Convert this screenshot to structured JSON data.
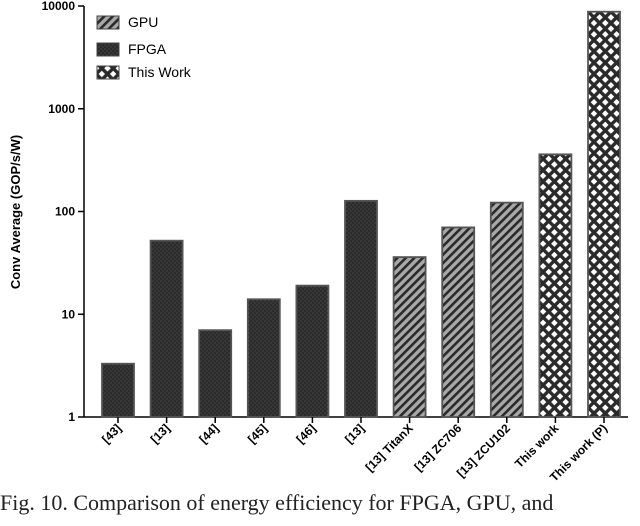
{
  "chart_data": {
    "type": "bar",
    "ylabel": "Conv Average (GOP/s/W)",
    "yscale": "log",
    "ylim": [
      1,
      10000
    ],
    "yticks": [
      "1",
      "10",
      "100",
      "1000",
      "10000"
    ],
    "categories": [
      "[43]",
      "[13]",
      "[44]",
      "[45]",
      "[46]",
      "[13]",
      "[13] TitanX",
      "[13] ZC706",
      "[13] ZCU102",
      "This work",
      "This work (P)"
    ],
    "values": [
      3.3,
      52,
      7,
      14,
      19,
      127,
      36,
      70,
      122,
      360,
      8800
    ],
    "groups": [
      "FPGA",
      "FPGA",
      "FPGA",
      "FPGA",
      "FPGA",
      "FPGA",
      "GPU",
      "GPU",
      "GPU",
      "This Work",
      "This Work"
    ],
    "legend": [
      {
        "name": "GPU",
        "pattern": "diagonal-hatch"
      },
      {
        "name": "FPGA",
        "pattern": "dark-dotted"
      },
      {
        "name": "This Work",
        "pattern": "crosshatch"
      }
    ],
    "legend_position": "top-left",
    "grid": false,
    "colors": {
      "fpga": "#2b2b2b",
      "gpu_fill": "#9a9a9a",
      "gpu_hatch": "#2a2a2a",
      "thiswork_fill": "#ffffff",
      "thiswork_hatch": "#2a2a2a"
    }
  },
  "caption": "Fig. 10. Comparison of energy efficiency for FPGA, GPU, and"
}
